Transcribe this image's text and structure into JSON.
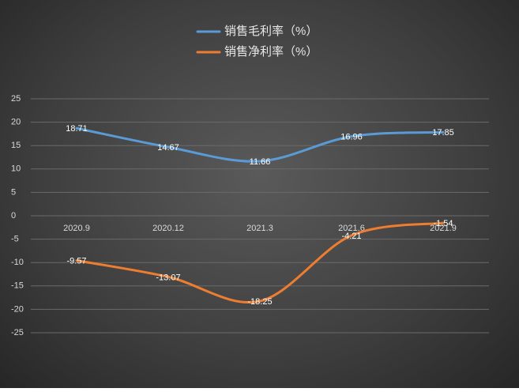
{
  "chart_data": {
    "type": "line",
    "categories": [
      "2020.9",
      "2020.12",
      "2021.3",
      "2021.6",
      "2021.9"
    ],
    "series": [
      {
        "name": "销售毛利率（%）",
        "color": "#5b9bd5",
        "values": [
          18.71,
          14.67,
          11.66,
          16.96,
          17.85
        ]
      },
      {
        "name": "销售净利率（%）",
        "color": "#ed7d31",
        "values": [
          -9.57,
          -13.07,
          -18.25,
          -4.21,
          -1.54
        ]
      }
    ],
    "ylim": [
      -25,
      25
    ],
    "yticks": [
      -25,
      -20,
      -15,
      -10,
      -5,
      0,
      5,
      10,
      15,
      20,
      25
    ],
    "grid": true,
    "smooth": true
  }
}
